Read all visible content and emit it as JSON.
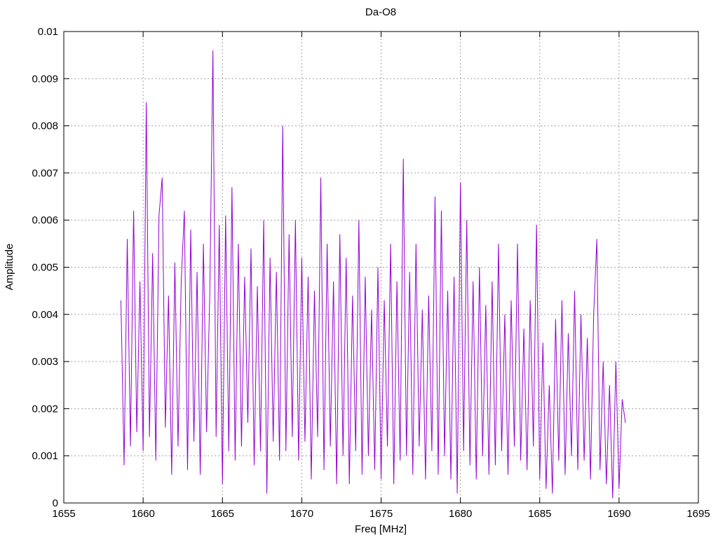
{
  "chart_data": {
    "type": "line",
    "title": "Da-O8",
    "x_label": "Freq [MHz]",
    "y_label": "Amplitude",
    "xlim": [
      1655,
      1695
    ],
    "xticks": [
      1655,
      1660,
      1665,
      1670,
      1675,
      1680,
      1685,
      1690,
      1695
    ],
    "ylim": [
      0,
      0.01
    ],
    "yticks": [
      0,
      0.001,
      0.002,
      0.003,
      0.004,
      0.005,
      0.006,
      0.007,
      0.008,
      0.009,
      0.01
    ],
    "grid": true,
    "x": [
      1658.6,
      1658.8,
      1659,
      1659.2,
      1659.4,
      1659.6,
      1659.8,
      1660,
      1660.2,
      1660.4,
      1660.6,
      1660.8,
      1661,
      1661.2,
      1661.4,
      1661.6,
      1661.8,
      1662,
      1662.2,
      1662.4,
      1662.6,
      1662.8,
      1663,
      1663.2,
      1663.4,
      1663.6,
      1663.8,
      1664,
      1664.2,
      1664.4,
      1664.6,
      1664.8,
      1665,
      1665.2,
      1665.4,
      1665.6,
      1665.8,
      1666,
      1666.2,
      1666.4,
      1666.6,
      1666.8,
      1667,
      1667.2,
      1667.4,
      1667.6,
      1667.8,
      1668,
      1668.2,
      1668.4,
      1668.6,
      1668.8,
      1669,
      1669.2,
      1669.4,
      1669.6,
      1669.8,
      1670,
      1670.2,
      1670.4,
      1670.6,
      1670.8,
      1671,
      1671.2,
      1671.4,
      1671.6,
      1671.8,
      1672,
      1672.2,
      1672.4,
      1672.6,
      1672.8,
      1673,
      1673.2,
      1673.4,
      1673.6,
      1673.8,
      1674,
      1674.2,
      1674.4,
      1674.6,
      1674.8,
      1675,
      1675.2,
      1675.4,
      1675.6,
      1675.8,
      1676,
      1676.2,
      1676.4,
      1676.6,
      1676.8,
      1677,
      1677.2,
      1677.4,
      1677.6,
      1677.8,
      1678,
      1678.2,
      1678.4,
      1678.6,
      1678.8,
      1679,
      1679.2,
      1679.4,
      1679.6,
      1679.8,
      1680,
      1680.2,
      1680.4,
      1680.6,
      1680.8,
      1681,
      1681.2,
      1681.4,
      1681.6,
      1681.8,
      1682,
      1682.2,
      1682.4,
      1682.6,
      1682.8,
      1683,
      1683.2,
      1683.4,
      1683.6,
      1683.8,
      1684,
      1684.2,
      1684.4,
      1684.6,
      1684.8,
      1685,
      1685.2,
      1685.4,
      1685.6,
      1685.8,
      1686,
      1686.2,
      1686.4,
      1686.6,
      1686.8,
      1687,
      1687.2,
      1687.4,
      1687.6,
      1687.8,
      1688,
      1688.2,
      1688.4,
      1688.6,
      1688.8,
      1689,
      1689.2,
      1689.4,
      1689.6,
      1689.8,
      1690,
      1690.2,
      1690.4
    ],
    "series": [
      {
        "color": "#9400d3",
        "values": [
          0.0043,
          0.0008,
          0.0056,
          0.0012,
          0.0062,
          0.0015,
          0.0047,
          0.0011,
          0.0085,
          0.0014,
          0.0053,
          0.0009,
          0.0061,
          0.0069,
          0.0016,
          0.0044,
          0.0006,
          0.0051,
          0.0012,
          0.0047,
          0.0062,
          0.0007,
          0.0058,
          0.0013,
          0.0049,
          0.0006,
          0.0055,
          0.0015,
          0.0044,
          0.0096,
          0.0014,
          0.0059,
          0.0004,
          0.0061,
          0.0011,
          0.0067,
          0.0009,
          0.0055,
          0.0012,
          0.0048,
          0.0017,
          0.0054,
          0.0008,
          0.0046,
          0.0011,
          0.006,
          0.0002,
          0.0052,
          0.0013,
          0.0049,
          0.0009,
          0.008,
          0.0011,
          0.0057,
          0.0014,
          0.006,
          0.0009,
          0.0052,
          0.0013,
          0.0048,
          0.0005,
          0.0045,
          0.0014,
          0.0069,
          0.0007,
          0.0055,
          0.0012,
          0.0047,
          0.0004,
          0.0057,
          0.001,
          0.0052,
          0.0004,
          0.0044,
          0.0011,
          0.006,
          0.0006,
          0.0048,
          0.001,
          0.0041,
          0.0007,
          0.005,
          0.0005,
          0.0043,
          0.0012,
          0.0055,
          0.0004,
          0.0047,
          0.0009,
          0.0073,
          0.001,
          0.0049,
          0.0006,
          0.0055,
          0.0012,
          0.0041,
          0.0005,
          0.0044,
          0.0011,
          0.0065,
          0.0006,
          0.0062,
          0.001,
          0.0045,
          0.0005,
          0.0048,
          0.0002,
          0.0068,
          0.0011,
          0.006,
          0.0008,
          0.0047,
          0.0005,
          0.005,
          0.001,
          0.0042,
          0.0006,
          0.0047,
          0.0008,
          0.0055,
          0.0011,
          0.004,
          0.0006,
          0.0043,
          0.0012,
          0.0055,
          0.0009,
          0.0037,
          0.0007,
          0.0043,
          0.0012,
          0.0059,
          0.0005,
          0.0034,
          0.0003,
          0.0025,
          0.0002,
          0.0039,
          0.0009,
          0.0043,
          0.0006,
          0.0036,
          0.001,
          0.0045,
          0.0007,
          0.004,
          0.0009,
          0.0035,
          0.0005,
          0.004,
          0.0056,
          0.0007,
          0.003,
          0.0004,
          0.0025,
          0.0001,
          0.003,
          0.0003,
          0.0022,
          0.0017
        ]
      }
    ]
  }
}
